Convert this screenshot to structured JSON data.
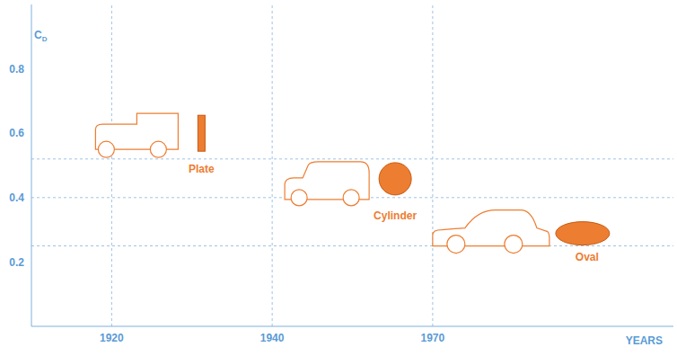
{
  "chart_data": {
    "type": "scatter",
    "y_label": "CD",
    "x_label": "YEARS",
    "categories": [
      "1920",
      "1940",
      "1970",
      null
    ],
    "values": [
      0.6,
      0.45,
      0.3,
      null
    ],
    "marker_labels": [
      "Plate",
      "Cylinder",
      "Oval",
      null
    ],
    "ylim": [
      0,
      1
    ],
    "yticks": [
      0.2,
      0.4,
      0.6,
      0.8
    ],
    "grid": true,
    "reference_lines": [
      0.52,
      0.4,
      0.25
    ],
    "color": "#ed7d31"
  }
}
